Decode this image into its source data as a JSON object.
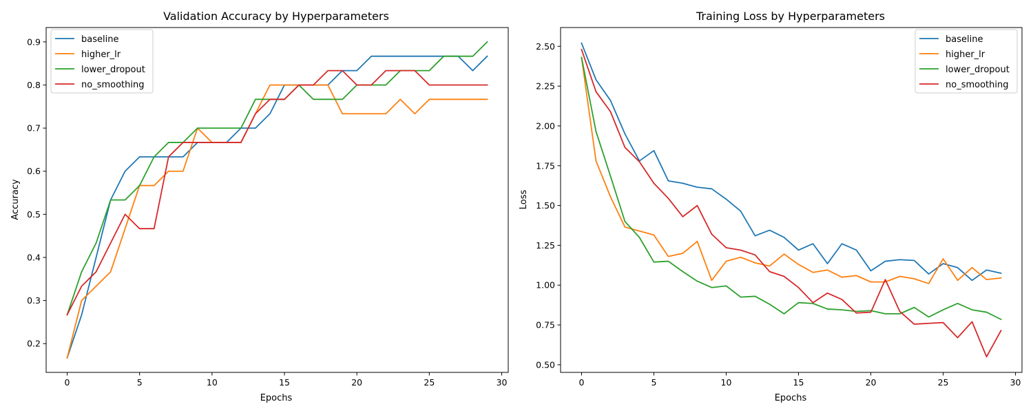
{
  "chart_data": [
    {
      "type": "line",
      "title": "Validation Accuracy by Hyperparameters",
      "xlabel": "Epochs",
      "ylabel": "Accuracy",
      "xlim": [
        -1.45,
        30.45
      ],
      "ylim": [
        0.1333,
        0.9333
      ],
      "xticks": [
        0,
        5,
        10,
        15,
        20,
        25,
        30
      ],
      "yticks": [
        0.2,
        0.3,
        0.4,
        0.5,
        0.6,
        0.7,
        0.8,
        0.9
      ],
      "ytick_labels": [
        "0.2",
        "0.3",
        "0.4",
        "0.5",
        "0.6",
        "0.7",
        "0.8",
        "0.9"
      ],
      "legend": "upper-left",
      "x": [
        0,
        1,
        2,
        3,
        4,
        5,
        6,
        7,
        8,
        9,
        10,
        11,
        12,
        13,
        14,
        15,
        16,
        17,
        18,
        19,
        20,
        21,
        22,
        23,
        24,
        25,
        26,
        27,
        28,
        29
      ],
      "series": [
        {
          "name": "baseline",
          "color": "#1f77b4",
          "values": [
            0.1667,
            0.2667,
            0.4,
            0.5333,
            0.6,
            0.6333,
            0.6333,
            0.6333,
            0.6333,
            0.6667,
            0.6667,
            0.6667,
            0.7,
            0.7,
            0.7333,
            0.8,
            0.8,
            0.8,
            0.8,
            0.8333,
            0.8333,
            0.8667,
            0.8667,
            0.8667,
            0.8667,
            0.8667,
            0.8667,
            0.8667,
            0.8333,
            0.8667
          ]
        },
        {
          "name": "higher_lr",
          "color": "#ff7f0e",
          "values": [
            0.1667,
            0.3,
            0.3333,
            0.3667,
            0.4667,
            0.5667,
            0.5667,
            0.6,
            0.6,
            0.7,
            0.6667,
            0.6667,
            0.6667,
            0.7333,
            0.8,
            0.8,
            0.8,
            0.8,
            0.8,
            0.7333,
            0.7333,
            0.7333,
            0.7333,
            0.7667,
            0.7333,
            0.7667,
            0.7667,
            0.7667,
            0.7667,
            0.7667
          ]
        },
        {
          "name": "lower_dropout",
          "color": "#2ca02c",
          "values": [
            0.2667,
            0.3667,
            0.4333,
            0.5333,
            0.5333,
            0.5667,
            0.6333,
            0.6667,
            0.6667,
            0.7,
            0.7,
            0.7,
            0.7,
            0.7667,
            0.7667,
            0.7667,
            0.8,
            0.7667,
            0.7667,
            0.7667,
            0.8,
            0.8,
            0.8,
            0.8333,
            0.8333,
            0.8333,
            0.8667,
            0.8667,
            0.8667,
            0.9
          ]
        },
        {
          "name": "no_smoothing",
          "color": "#d62728",
          "values": [
            0.2667,
            0.3333,
            0.3667,
            0.4333,
            0.5,
            0.4667,
            0.4667,
            0.6333,
            0.6667,
            0.6667,
            0.6667,
            0.6667,
            0.6667,
            0.7333,
            0.7667,
            0.7667,
            0.8,
            0.8,
            0.8333,
            0.8333,
            0.8,
            0.8,
            0.8333,
            0.8333,
            0.8333,
            0.8,
            0.8,
            0.8,
            0.8,
            0.8
          ]
        }
      ]
    },
    {
      "type": "line",
      "title": "Training Loss by Hyperparameters",
      "xlabel": "Epochs",
      "ylabel": "Loss",
      "xlim": [
        -1.45,
        30.45
      ],
      "ylim": [
        0.452,
        2.618
      ],
      "xticks": [
        0,
        5,
        10,
        15,
        20,
        25,
        30
      ],
      "yticks": [
        0.5,
        0.75,
        1.0,
        1.25,
        1.5,
        1.75,
        2.0,
        2.25,
        2.5
      ],
      "ytick_labels": [
        "0.50",
        "0.75",
        "1.00",
        "1.25",
        "1.50",
        "1.75",
        "2.00",
        "2.25",
        "2.50"
      ],
      "legend": "upper-right",
      "x": [
        0,
        1,
        2,
        3,
        4,
        5,
        6,
        7,
        8,
        9,
        10,
        11,
        12,
        13,
        14,
        15,
        16,
        17,
        18,
        19,
        20,
        21,
        22,
        23,
        24,
        25,
        26,
        27,
        28,
        29
      ],
      "series": [
        {
          "name": "baseline",
          "color": "#1f77b4",
          "values": [
            2.52,
            2.29,
            2.16,
            1.95,
            1.78,
            1.845,
            1.655,
            1.64,
            1.615,
            1.605,
            1.54,
            1.465,
            1.31,
            1.345,
            1.3,
            1.22,
            1.26,
            1.135,
            1.26,
            1.22,
            1.09,
            1.15,
            1.16,
            1.155,
            1.07,
            1.135,
            1.11,
            1.03,
            1.095,
            1.075
          ]
        },
        {
          "name": "higher_lr",
          "color": "#ff7f0e",
          "values": [
            2.43,
            1.78,
            1.555,
            1.365,
            1.34,
            1.315,
            1.18,
            1.2,
            1.275,
            1.03,
            1.15,
            1.175,
            1.14,
            1.12,
            1.195,
            1.13,
            1.08,
            1.095,
            1.05,
            1.06,
            1.02,
            1.02,
            1.055,
            1.04,
            1.01,
            1.165,
            1.03,
            1.11,
            1.035,
            1.045
          ]
        },
        {
          "name": "lower_dropout",
          "color": "#2ca02c",
          "values": [
            2.43,
            1.965,
            1.685,
            1.4,
            1.3,
            1.145,
            1.15,
            1.085,
            1.025,
            0.985,
            0.995,
            0.925,
            0.93,
            0.88,
            0.82,
            0.89,
            0.885,
            0.85,
            0.845,
            0.835,
            0.84,
            0.82,
            0.82,
            0.86,
            0.8,
            0.845,
            0.885,
            0.845,
            0.83,
            0.785
          ]
        },
        {
          "name": "no_smoothing",
          "color": "#d62728",
          "values": [
            2.48,
            2.215,
            2.09,
            1.865,
            1.775,
            1.64,
            1.545,
            1.43,
            1.5,
            1.32,
            1.235,
            1.22,
            1.19,
            1.085,
            1.055,
            0.985,
            0.89,
            0.95,
            0.91,
            0.825,
            0.83,
            1.035,
            0.835,
            0.755,
            0.76,
            0.765,
            0.67,
            0.77,
            0.55,
            0.715
          ]
        }
      ]
    }
  ]
}
